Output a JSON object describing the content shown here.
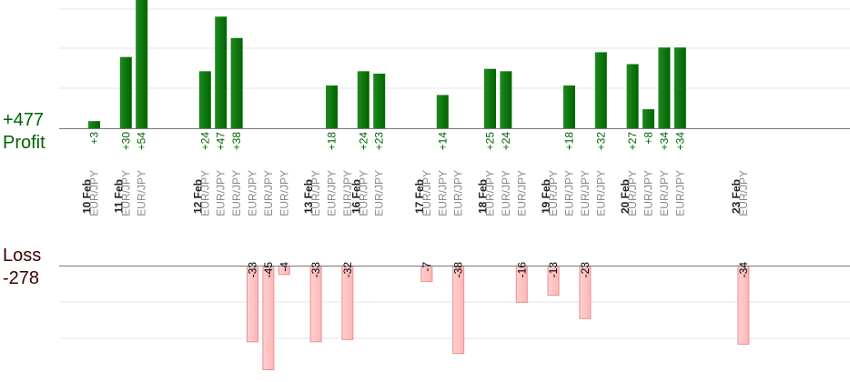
{
  "summary": {
    "profit_total": "+477",
    "profit_label": "Profit",
    "loss_label": "Loss",
    "loss_total": "-278"
  },
  "colors": {
    "profit_bar": "#006400",
    "profit_text": "#006400",
    "loss_bar": "#ffb6b6",
    "loss_border": "#e89090",
    "loss_text": "#000000",
    "axis": "#777777",
    "grid": "#e6e6e6"
  },
  "chart_data": {
    "type": "bar",
    "subtype": "diverging-profit-loss",
    "grid": true,
    "profit_scale_max": 54,
    "loss_scale_max": 45,
    "dates": [
      "10 Feb",
      "11 Feb",
      "12 Feb",
      "13 Feb",
      "16 Feb",
      "17 Feb",
      "18 Feb",
      "19 Feb",
      "20 Feb",
      "23 Feb"
    ],
    "trades": [
      {
        "date": "10 Feb",
        "pair": "EUR/JPY",
        "value": 3,
        "label": "+3"
      },
      {
        "date": "11 Feb",
        "pair": "EUR/JPY",
        "value": 30,
        "label": "+30"
      },
      {
        "date": "11 Feb",
        "pair": "EUR/JPY",
        "value": 54,
        "label": "+54"
      },
      {
        "date": "12 Feb",
        "pair": "EUR/JPY",
        "value": 24,
        "label": "+24"
      },
      {
        "date": "12 Feb",
        "pair": "EUR/JPY",
        "value": 47,
        "label": "+47"
      },
      {
        "date": "12 Feb",
        "pair": "EUR/JPY",
        "value": 38,
        "label": "+38"
      },
      {
        "date": "12 Feb",
        "pair": "EUR/JPY",
        "value": -33,
        "label": "-33"
      },
      {
        "date": "12 Feb",
        "pair": "EUR/JPY",
        "value": -45,
        "label": "-45"
      },
      {
        "date": "12 Feb",
        "pair": "EUR/JPY",
        "value": -4,
        "label": "-4"
      },
      {
        "date": "13 Feb",
        "pair": "EUR/JPY",
        "value": -33,
        "label": "-33"
      },
      {
        "date": "13 Feb",
        "pair": "EUR/JPY",
        "value": 18,
        "label": "+18"
      },
      {
        "date": "13 Feb",
        "pair": "EUR/JPY",
        "value": -32,
        "label": "-32"
      },
      {
        "date": "16 Feb",
        "pair": "EUR/JPY",
        "value": 24,
        "label": "+24"
      },
      {
        "date": "16 Feb",
        "pair": "EUR/JPY",
        "value": 23,
        "label": "+23"
      },
      {
        "date": "17 Feb",
        "pair": "EUR/JPY",
        "value": -7,
        "label": "-7"
      },
      {
        "date": "17 Feb",
        "pair": "EUR/JPY",
        "value": 14,
        "label": "+14"
      },
      {
        "date": "17 Feb",
        "pair": "EUR/JPY",
        "value": -38,
        "label": "-38"
      },
      {
        "date": "18 Feb",
        "pair": "EUR/JPY",
        "value": 25,
        "label": "+25"
      },
      {
        "date": "18 Feb",
        "pair": "EUR/JPY",
        "value": 24,
        "label": "+24"
      },
      {
        "date": "18 Feb",
        "pair": "EUR/JPY",
        "value": -16,
        "label": "-16"
      },
      {
        "date": "19 Feb",
        "pair": "EUR/JPY",
        "value": -13,
        "label": "-13"
      },
      {
        "date": "19 Feb",
        "pair": "EUR/JPY",
        "value": 18,
        "label": "+18"
      },
      {
        "date": "19 Feb",
        "pair": "EUR/JPY",
        "value": -23,
        "label": "-23"
      },
      {
        "date": "19 Feb",
        "pair": "EUR/JPY",
        "value": 32,
        "label": "+32"
      },
      {
        "date": "20 Feb",
        "pair": "EUR/JPY",
        "value": 27,
        "label": "+27"
      },
      {
        "date": "20 Feb",
        "pair": "EUR/JPY",
        "value": 8,
        "label": "+8"
      },
      {
        "date": "20 Feb",
        "pair": "EUR/JPY",
        "value": 34,
        "label": "+34"
      },
      {
        "date": "20 Feb",
        "pair": "EUR/JPY",
        "value": 34,
        "label": "+34"
      },
      {
        "date": "23 Feb",
        "pair": "EUR/JPY",
        "value": -34,
        "label": "-34"
      }
    ]
  }
}
